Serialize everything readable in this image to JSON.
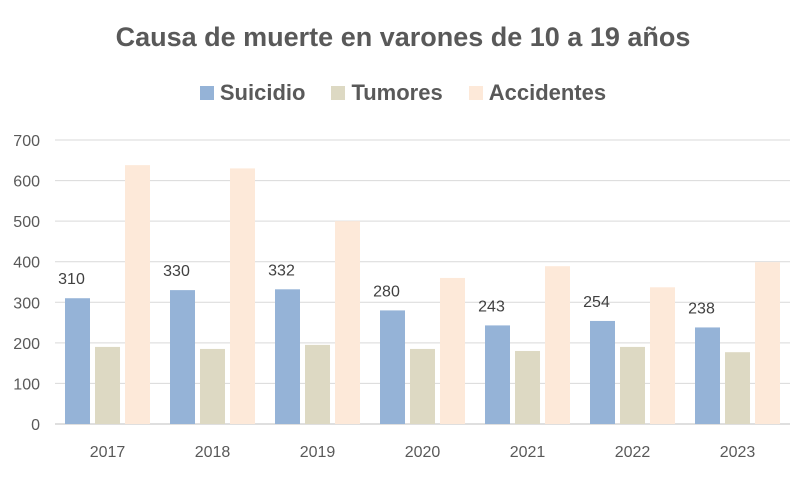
{
  "chart_data": {
    "type": "bar",
    "title": "Causa de muerte en varones de 10 a 19 años",
    "xlabel": "",
    "ylabel": "",
    "categories": [
      "2017",
      "2018",
      "2019",
      "2020",
      "2021",
      "2022",
      "2023"
    ],
    "ylim": [
      0,
      700
    ],
    "yticks": [
      0,
      100,
      200,
      300,
      400,
      500,
      600,
      700
    ],
    "grid": true,
    "legend_position": "top",
    "series": [
      {
        "name": "Suicidio",
        "color": "#95b3d7",
        "values": [
          310,
          330,
          332,
          280,
          243,
          254,
          238
        ],
        "data_labels": true
      },
      {
        "name": "Tumores",
        "color": "#ddd9c3",
        "values": [
          190,
          185,
          195,
          185,
          180,
          190,
          177
        ],
        "data_labels": false
      },
      {
        "name": "Accidentes",
        "color": "#fde9d9",
        "values": [
          638,
          630,
          500,
          360,
          389,
          337,
          399
        ],
        "data_labels": false
      }
    ]
  }
}
